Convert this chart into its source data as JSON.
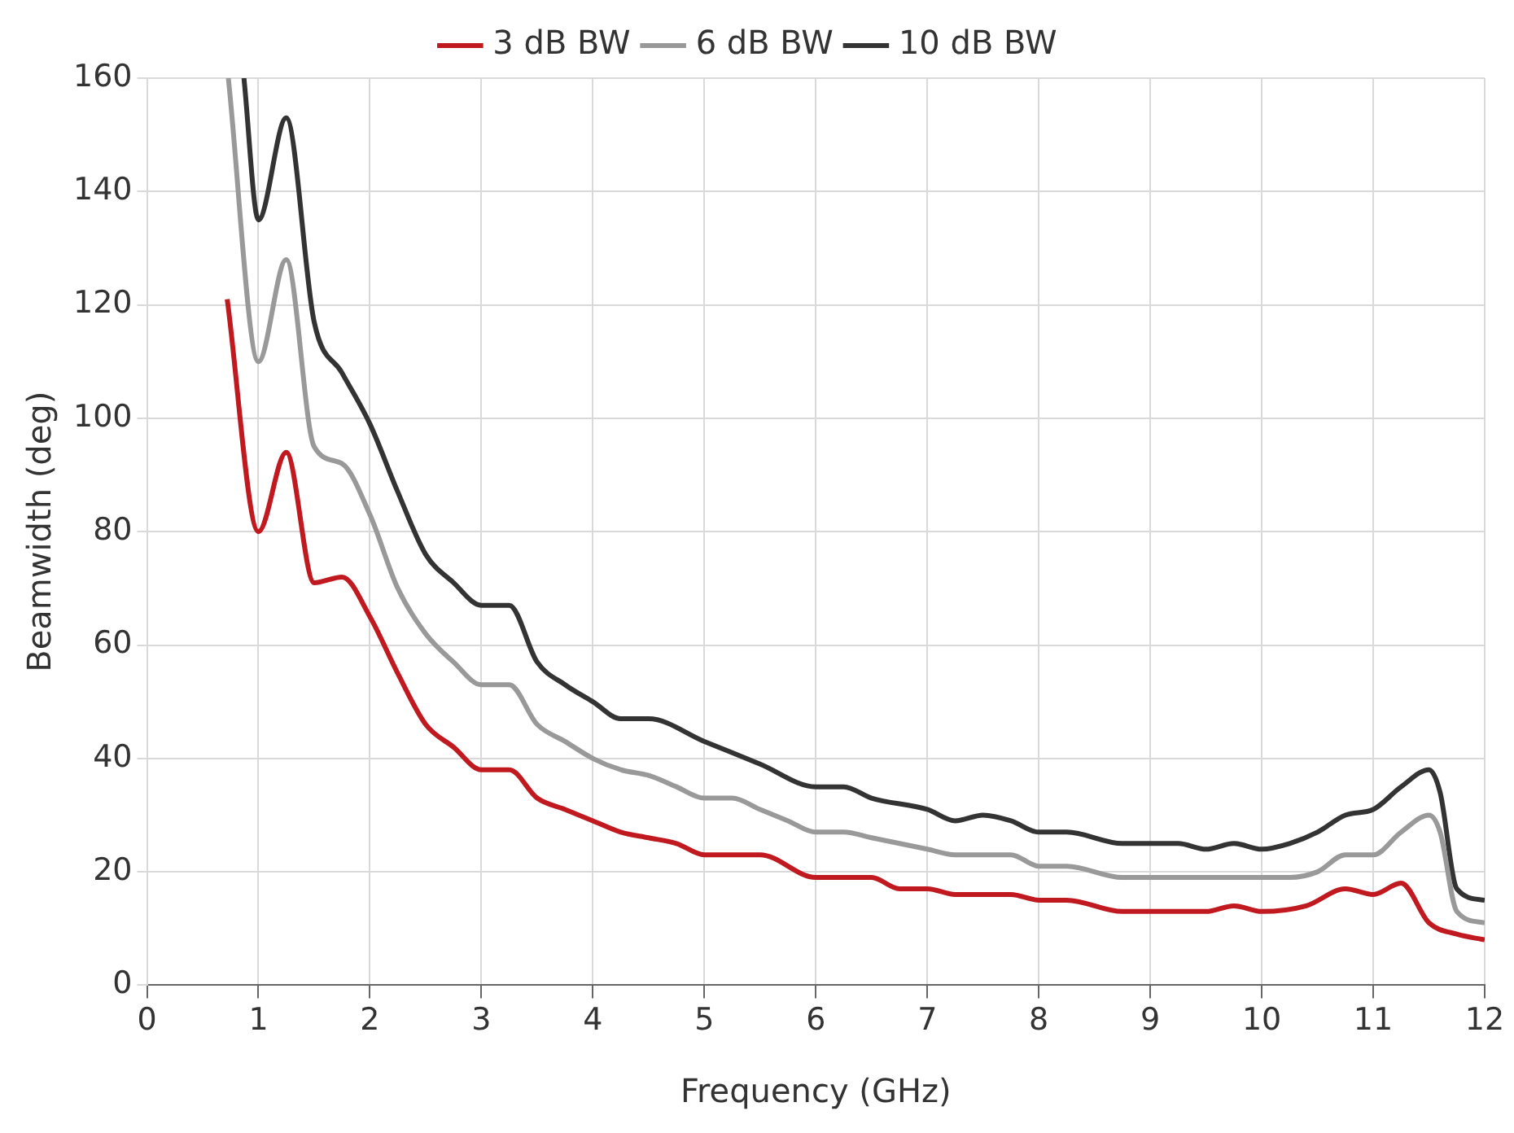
{
  "chart_data": {
    "type": "line",
    "xlabel": "Frequency (GHz)",
    "ylabel": "Beamwidth (deg)",
    "xlim": [
      0,
      12
    ],
    "xticks": [
      0,
      1,
      2,
      3,
      4,
      5,
      6,
      7,
      8,
      9,
      10,
      11,
      12
    ],
    "ylim": [
      0,
      160
    ],
    "yticks": [
      0,
      20,
      40,
      60,
      80,
      100,
      120,
      140,
      160
    ],
    "grid": true,
    "legend": "top",
    "marker": "none",
    "line_style": "solid",
    "series": [
      {
        "name": "3 dB BW",
        "color": "#c0191f",
        "x": [
          0.72,
          1.0,
          1.25,
          1.5,
          1.75,
          2.0,
          2.25,
          2.5,
          2.75,
          3.0,
          3.25,
          3.5,
          3.75,
          4.0,
          4.25,
          4.5,
          4.75,
          5.0,
          5.5,
          6.0,
          6.5,
          6.75,
          7.0,
          7.25,
          7.75,
          8.0,
          8.25,
          8.75,
          9.5,
          9.75,
          10.0,
          10.4,
          10.75,
          11.0,
          11.25,
          11.5,
          11.75,
          12.0
        ],
        "values": [
          121,
          80,
          94,
          71,
          72,
          65,
          55,
          46,
          42,
          38,
          38,
          33,
          31,
          29,
          27,
          26,
          25,
          23,
          23,
          19,
          19,
          17,
          17,
          16,
          16,
          15,
          15,
          13,
          13,
          14,
          13,
          14,
          17,
          16,
          18,
          11,
          9,
          8
        ]
      },
      {
        "name": "6 dB BW",
        "color": "#999999",
        "x": [
          0.73,
          1.0,
          1.25,
          1.5,
          1.75,
          2.0,
          2.25,
          2.5,
          2.75,
          3.0,
          3.25,
          3.5,
          3.75,
          4.0,
          4.25,
          4.5,
          4.75,
          5.0,
          5.25,
          5.5,
          5.75,
          6.0,
          6.25,
          6.5,
          7.0,
          7.25,
          7.75,
          8.0,
          8.25,
          8.75,
          9.0,
          10.25,
          10.5,
          10.75,
          11.0,
          11.25,
          11.5,
          11.6,
          11.75,
          12.0
        ],
        "values": [
          160,
          110,
          128,
          95,
          92,
          83,
          70,
          62,
          57,
          53,
          53,
          46,
          43,
          40,
          38,
          37,
          35,
          33,
          33,
          31,
          29,
          27,
          27,
          26,
          24,
          23,
          23,
          21,
          21,
          19,
          19,
          19,
          20,
          23,
          23,
          27,
          30,
          27,
          13,
          11
        ]
      },
      {
        "name": "10 dB BW",
        "color": "#333333",
        "x": [
          0.87,
          1.0,
          1.25,
          1.5,
          1.75,
          2.0,
          2.25,
          2.5,
          2.75,
          3.0,
          3.25,
          3.5,
          3.75,
          4.0,
          4.25,
          4.5,
          5.0,
          5.5,
          6.0,
          6.25,
          6.5,
          7.0,
          7.25,
          7.5,
          7.75,
          8.0,
          8.25,
          8.75,
          9.25,
          9.5,
          9.75,
          10.0,
          10.25,
          10.5,
          10.75,
          11.0,
          11.25,
          11.5,
          11.6,
          11.75,
          12.0
        ],
        "values": [
          160,
          135,
          153,
          117,
          108,
          99,
          87,
          76,
          71,
          67,
          67,
          57,
          53,
          50,
          47,
          47,
          43,
          39,
          35,
          35,
          33,
          31,
          29,
          30,
          29,
          27,
          27,
          25,
          25,
          24,
          25,
          24,
          25,
          27,
          30,
          31,
          35,
          38,
          34,
          17,
          15
        ]
      }
    ]
  }
}
